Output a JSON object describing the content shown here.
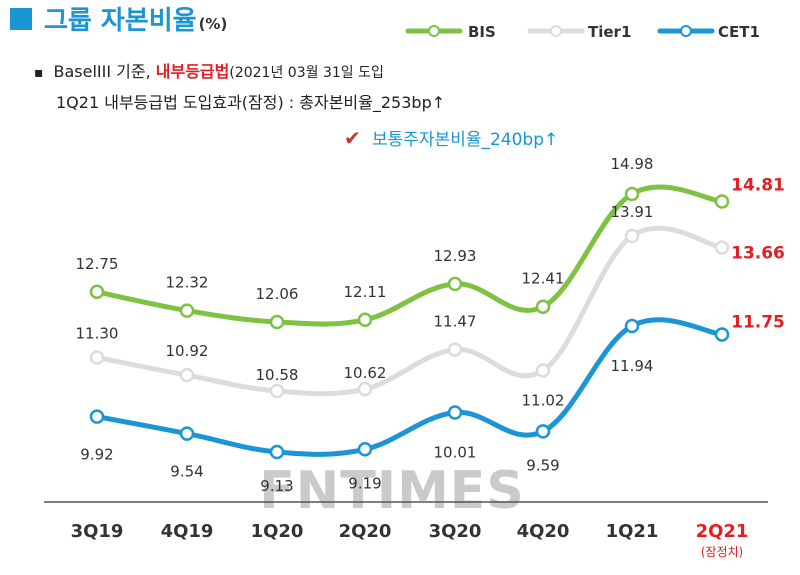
{
  "title": {
    "main": "그룹 자본비율",
    "unit": "(%)"
  },
  "notes": {
    "bullet": "▪",
    "line1_prefix": "BaselIII 기준, ",
    "line1_highlight": "내부등급법",
    "line1_suffix": "(2021년 03월 31일 도입",
    "line2": "1Q21 내부등급법 도입효과(잠정) : 총자본비율_253bp↑",
    "check_mark": "✔",
    "line3": "보통주자본비율_240bp↑"
  },
  "watermark": "FNTIMES",
  "colors": {
    "bis": "#7dc242",
    "tier1": "#dcdcdc",
    "cet1": "#1b95d3",
    "highlight": "#e31e24",
    "title_square": "#1b95d3",
    "title_text": "#1b95d3",
    "text": "#333333",
    "axis": "#555555",
    "watermark": "#b8b8b8"
  },
  "chart_data": {
    "type": "line",
    "categories": [
      "3Q19",
      "4Q19",
      "1Q20",
      "2Q20",
      "3Q20",
      "4Q20",
      "1Q21",
      "2Q21"
    ],
    "category_sublabel_last": "(잠정치)",
    "highlight_last": true,
    "series": [
      {
        "name": "BIS",
        "key": "bis",
        "values": [
          12.75,
          12.32,
          12.06,
          12.11,
          12.93,
          12.41,
          14.98,
          14.81
        ]
      },
      {
        "name": "Tier1",
        "key": "tier1",
        "values": [
          11.3,
          10.92,
          10.58,
          10.62,
          11.47,
          11.02,
          13.91,
          13.66
        ]
      },
      {
        "name": "CET1",
        "key": "cet1",
        "values": [
          9.92,
          9.54,
          9.13,
          9.19,
          10.01,
          9.59,
          11.94,
          11.75
        ]
      }
    ],
    "legend_position": "top-right"
  }
}
